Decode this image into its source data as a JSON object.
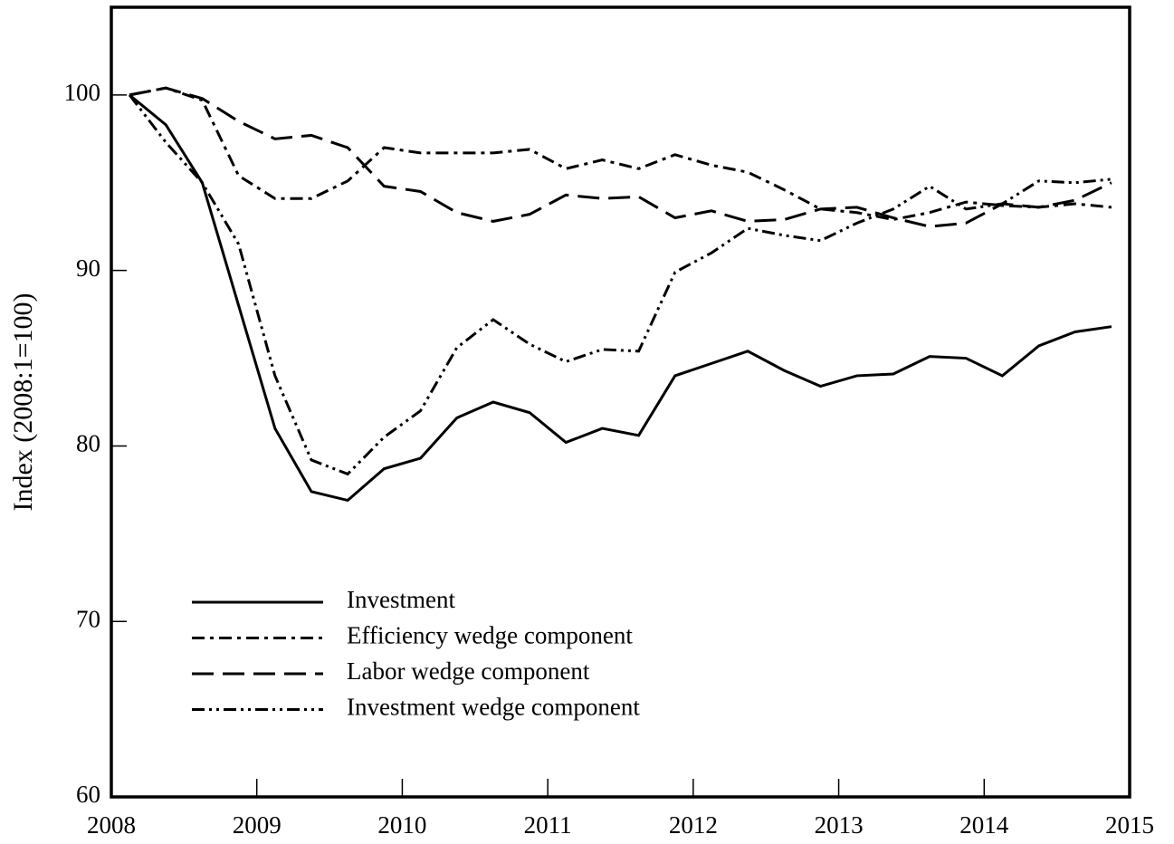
{
  "chart_data": {
    "type": "line",
    "y_label": "Index (2008:1=100)",
    "x": [
      2008.125,
      2008.375,
      2008.625,
      2008.875,
      2009.125,
      2009.375,
      2009.625,
      2009.875,
      2010.125,
      2010.375,
      2010.625,
      2010.875,
      2011.125,
      2011.375,
      2011.625,
      2011.875,
      2012.125,
      2012.375,
      2012.625,
      2012.875,
      2013.125,
      2013.375,
      2013.625,
      2013.875,
      2014.125,
      2014.375,
      2014.625,
      2014.875
    ],
    "series": [
      {
        "name": "Investment",
        "color": "#000000",
        "style": "solid",
        "values": [
          100,
          98.3,
          95,
          88,
          81,
          77.4,
          76.9,
          78.7,
          79.3,
          81.6,
          82.5,
          81.9,
          80.2,
          81,
          80.6,
          84,
          84.7,
          85.4,
          84.3,
          83.4,
          84,
          84.1,
          85.1,
          85,
          84,
          85.7,
          86.5,
          86.8
        ]
      },
      {
        "name": "Efficiency wedge component",
        "color": "#000000",
        "style": "dash-dot",
        "values": [
          100,
          100.4,
          99.7,
          95.4,
          94.1,
          94.1,
          95.1,
          97,
          96.7,
          96.7,
          96.7,
          96.9,
          95.8,
          96.3,
          95.8,
          96.6,
          96,
          95.6,
          94.6,
          93.5,
          93.3,
          92.9,
          93.3,
          93.9,
          93.7,
          93.6,
          93.8,
          93.6
        ]
      },
      {
        "name": "Labor wedge component",
        "color": "#000000",
        "style": "long-dash",
        "values": [
          100,
          100.4,
          99.8,
          98.5,
          97.5,
          97.7,
          97,
          94.8,
          94.5,
          93.3,
          92.8,
          93.2,
          94.3,
          94.1,
          94.2,
          93,
          93.4,
          92.8,
          92.9,
          93.5,
          93.6,
          93,
          92.5,
          92.7,
          93.8,
          93.6,
          94,
          95
        ]
      },
      {
        "name": "Investment wedge component",
        "color": "#000000",
        "style": "dash-dot-dot",
        "values": [
          100,
          97.3,
          95,
          91.5,
          84,
          79.2,
          78.4,
          80.5,
          82,
          85.6,
          87.2,
          85.8,
          84.8,
          85.5,
          85.4,
          89.9,
          91,
          92.4,
          92,
          91.7,
          92.7,
          93.5,
          94.8,
          93.5,
          93.8,
          95.1,
          95,
          95.2
        ]
      }
    ],
    "xlim": [
      2008,
      2015
    ],
    "xticks": [
      2008,
      2009,
      2010,
      2011,
      2012,
      2013,
      2014,
      2015
    ],
    "ylim": [
      60,
      105
    ],
    "yticks": [
      60,
      70,
      80,
      90,
      100
    ],
    "grid": false,
    "legend": "lower left"
  }
}
